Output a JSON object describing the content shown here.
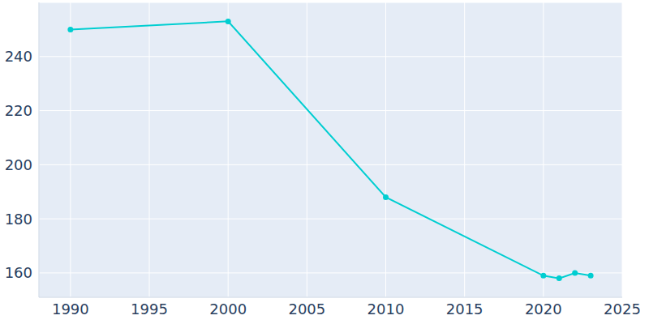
{
  "chart_data": {
    "type": "line",
    "x": [
      1990,
      2000,
      2010,
      2020,
      2021,
      2022,
      2023
    ],
    "values": [
      250,
      253,
      188,
      159,
      158,
      160,
      159
    ],
    "color": "#00ced1",
    "xlim": [
      1988,
      2025
    ],
    "xticks": [
      1990,
      1995,
      2000,
      2005,
      2010,
      2015,
      2020,
      2025
    ],
    "ylim": [
      151,
      260
    ],
    "yticks": [
      160,
      180,
      200,
      220,
      240
    ],
    "grid": true,
    "marker": "circle"
  }
}
